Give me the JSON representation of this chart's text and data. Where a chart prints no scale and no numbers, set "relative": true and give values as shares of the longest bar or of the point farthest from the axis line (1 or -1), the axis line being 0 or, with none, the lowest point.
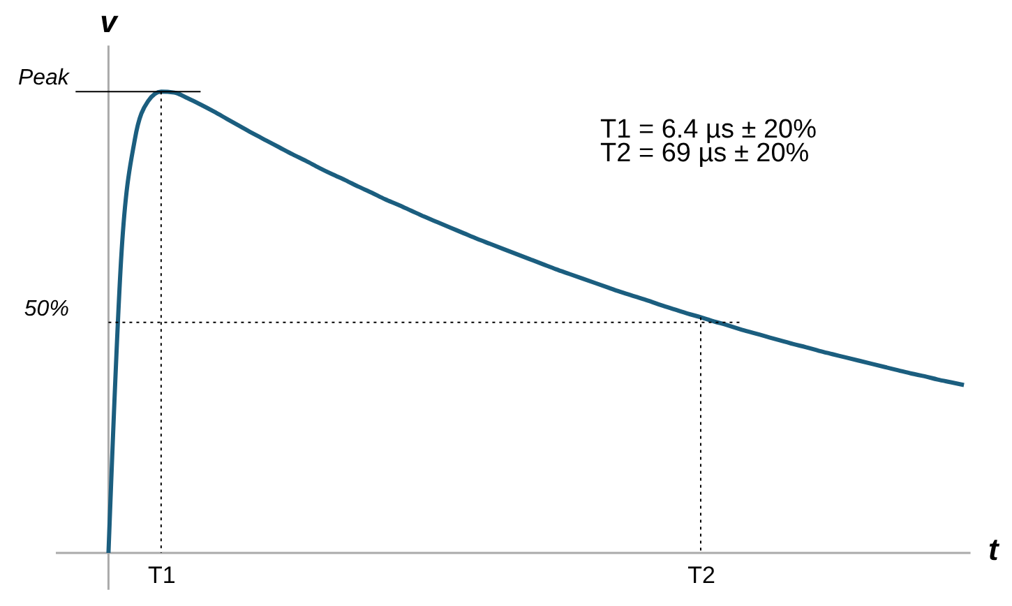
{
  "chart_data": {
    "type": "line",
    "relative": true,
    "xlabel": "t",
    "ylabel": "v",
    "categories": [
      null,
      null,
      null,
      null,
      "T1",
      null,
      null,
      null,
      null,
      null,
      null,
      null,
      null,
      null,
      null,
      null,
      null,
      null,
      null,
      null,
      null,
      null,
      null,
      null,
      null,
      null,
      null,
      null,
      null,
      null,
      null,
      null,
      null,
      null,
      null,
      null,
      null,
      null,
      null,
      null,
      null,
      null,
      null,
      null,
      null,
      "T2",
      null,
      null,
      null,
      null,
      null,
      null,
      null,
      null,
      null,
      null,
      null,
      null,
      null,
      null,
      null,
      null,
      null,
      null,
      null,
      null
    ],
    "series": [
      {
        "color": "#1b5e7f",
        "values": [
          0,
          0.655,
          0.896,
          0.979,
          1,
          0.998,
          0.986,
          0.972,
          0.957,
          0.941,
          0.925,
          0.909,
          0.894,
          0.879,
          0.864,
          0.85,
          0.835,
          0.821,
          0.808,
          0.794,
          0.781,
          0.767,
          0.755,
          0.742,
          0.729,
          0.717,
          0.705,
          0.693,
          0.681,
          0.67,
          0.659,
          0.648,
          0.637,
          0.626,
          0.615,
          0.605,
          0.595,
          0.585,
          0.575,
          0.565,
          0.556,
          0.547,
          0.537,
          0.528,
          0.519,
          0.511,
          0.502,
          0.494,
          0.485,
          0.477,
          0.469,
          0.461,
          0.453,
          0.446,
          0.438,
          0.431,
          0.424,
          0.417,
          0.41,
          0.403,
          0.396,
          0.389,
          0.383,
          0.376,
          0.37,
          0.364
        ]
      }
    ],
    "ref_lines": [
      {
        "axis": "y",
        "value": 1,
        "label": "Peak",
        "line_style": "solid",
        "color": "#000000"
      },
      {
        "axis": "y",
        "value": 0.5,
        "label": "50%",
        "line_style": "dotted",
        "color": "#000000"
      }
    ],
    "annotations": [
      "T1 = 6.4 µs ± 20%",
      "T2 =  69 µs ± 20%"
    ],
    "grid": false
  }
}
